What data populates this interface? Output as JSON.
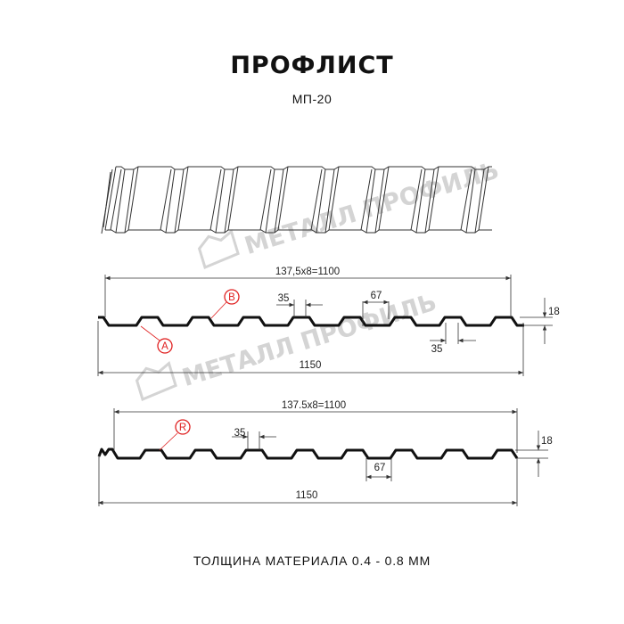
{
  "header": {
    "title": "ПРОФЛИСТ",
    "subtitle": "МП-20"
  },
  "watermark": {
    "text": "МЕТАЛЛ ПРОФИЛЬ",
    "color": "#d4d4d4"
  },
  "profile_a": {
    "pitch_label": "137,5x8=1100",
    "width_label": "1150",
    "top_width_label": "35",
    "bottom_width_label": "35",
    "rib_base_label": "67",
    "height_label": "18",
    "marker_a": "A",
    "marker_b": "B"
  },
  "profile_b": {
    "pitch_label": "137.5x8=1100",
    "width_label": "1150",
    "top_width_label": "35",
    "rib_base_label": "67",
    "height_label": "18",
    "marker_r": "R"
  },
  "footer": {
    "thickness": "ТОЛЩИНА МАТЕРИАЛА 0.4 - 0.8 ММ"
  },
  "colors": {
    "profile": "#111111",
    "marker": "#e02020",
    "dimension": "#333333"
  }
}
